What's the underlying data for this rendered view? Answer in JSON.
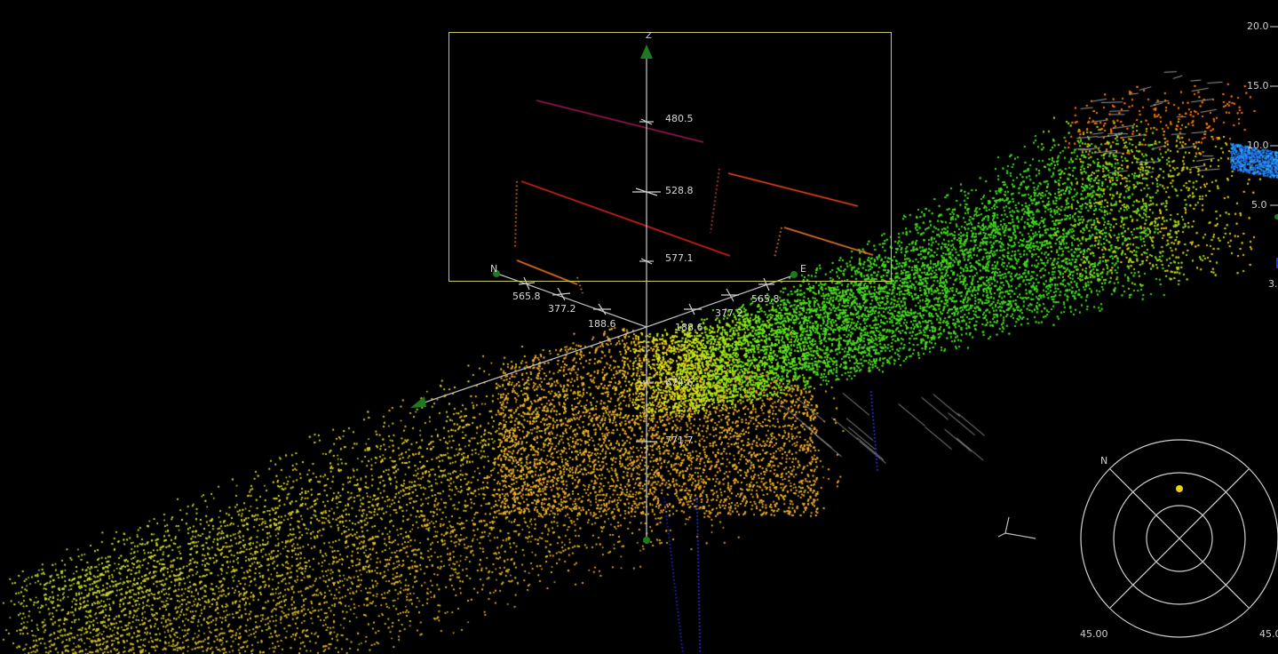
{
  "axes": {
    "z_label": "Z",
    "n_label": "N",
    "e_label": "E",
    "z_ticks": [
      "480.5",
      "528.8",
      "577.1",
      "674.6",
      "771.7"
    ],
    "n_ticks": [
      "565.8",
      "377.2",
      "188.6"
    ],
    "e_ticks": [
      "188.6",
      "377.2",
      "565.8"
    ]
  },
  "color_scale": {
    "ticks": [
      "20.0",
      "15.0",
      "10.0",
      "5.0",
      "3."
    ]
  },
  "compass": {
    "north_label": "N",
    "left_value": "45.00",
    "right_value": "45.0"
  },
  "colors": {
    "profile_frame": "#c9c76a",
    "axis": "#bdbdbd",
    "axis_arrow": "#1f7a1f",
    "compass_ring": "#d0d0d0",
    "compass_dot": "#e6d21a"
  },
  "icons": {
    "axis_arrow": "triangle-arrow-icon",
    "compass": "compass-rose-icon",
    "mini_axes": "mini-axes-icon"
  }
}
